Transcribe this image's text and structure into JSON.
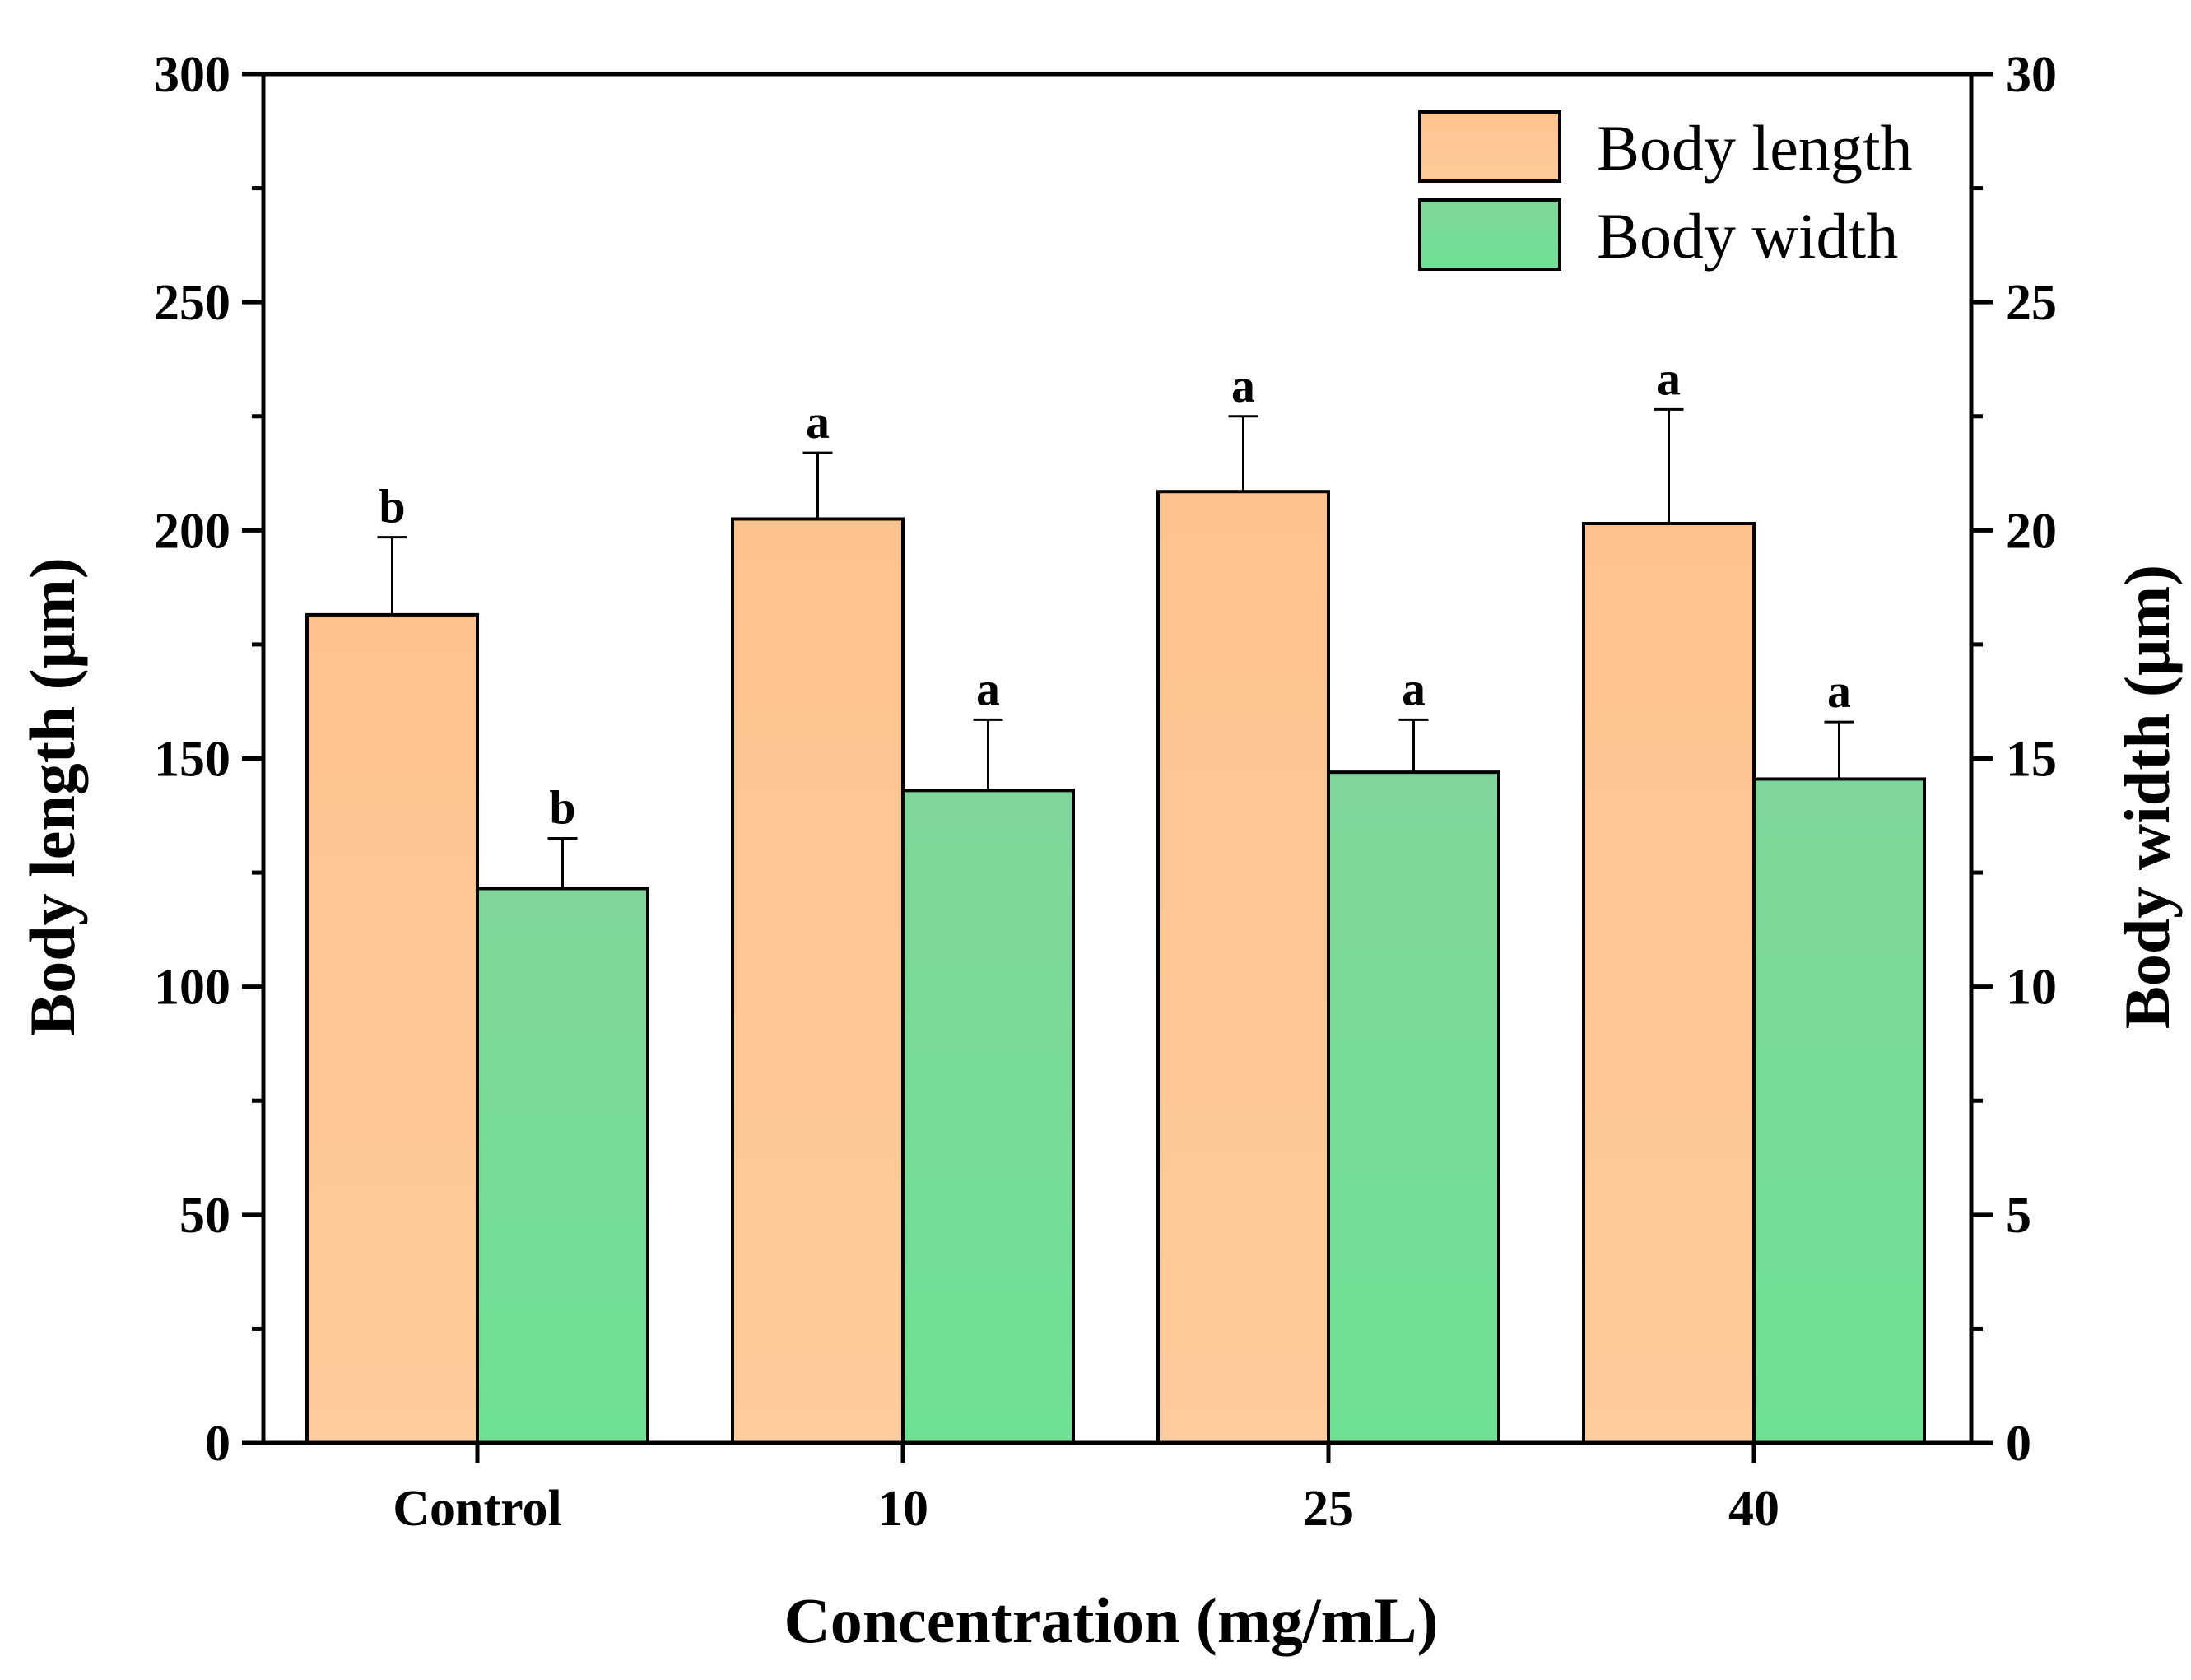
{
  "chart_data": {
    "type": "bar",
    "title": "",
    "xlabel": "Concentration (mg/mL)",
    "ylabel": "Body length (μm)",
    "y2label": "Body width (μm)",
    "categories": [
      "Control",
      "10",
      "25",
      "40"
    ],
    "ylim": [
      0,
      300
    ],
    "y2lim": [
      0,
      30
    ],
    "yticks": [
      "0",
      "50",
      "100",
      "150",
      "200",
      "250",
      "300"
    ],
    "y2ticks": [
      "0",
      "5",
      "10",
      "15",
      "20",
      "25",
      "30"
    ],
    "legend_position": "top-right",
    "series": [
      {
        "name": "Body length",
        "axis": "left",
        "color": "#FDC592",
        "values": [
          181.5,
          202.5,
          208.5,
          201.5
        ],
        "errors": [
          17.0,
          14.5,
          16.5,
          25.0
        ],
        "significance": [
          "b",
          "a",
          "a",
          "a"
        ]
      },
      {
        "name": "Body width",
        "axis": "right",
        "color": "#74DC96",
        "values": [
          12.15,
          14.3,
          14.7,
          14.55
        ],
        "errors": [
          1.1,
          1.55,
          1.15,
          1.25
        ],
        "significance": [
          "b",
          "a",
          "a",
          "a"
        ]
      }
    ]
  }
}
